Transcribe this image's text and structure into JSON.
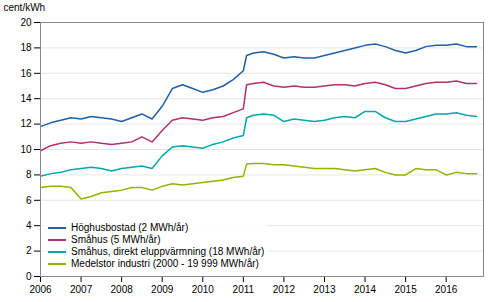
{
  "chart_data": {
    "type": "line",
    "y_label": "cent/kWh",
    "x": [
      2006.0,
      2006.25,
      2006.5,
      2006.75,
      2007.0,
      2007.25,
      2007.5,
      2007.75,
      2008.0,
      2008.25,
      2008.5,
      2008.75,
      2009.0,
      2009.25,
      2009.5,
      2009.75,
      2010.0,
      2010.25,
      2010.5,
      2010.75,
      2011.0,
      2011.08,
      2011.25,
      2011.5,
      2011.75,
      2012.0,
      2012.25,
      2012.5,
      2012.75,
      2013.0,
      2013.25,
      2013.5,
      2013.75,
      2014.0,
      2014.25,
      2014.5,
      2014.75,
      2015.0,
      2015.25,
      2015.5,
      2015.75,
      2016.0,
      2016.25,
      2016.5,
      2016.75
    ],
    "series": [
      {
        "name": "Höghusbostad (2 MWh/år)",
        "color": "#2060a8",
        "values": [
          11.8,
          12.1,
          12.3,
          12.5,
          12.4,
          12.6,
          12.5,
          12.4,
          12.2,
          12.5,
          12.8,
          12.4,
          13.4,
          14.8,
          15.1,
          14.8,
          14.5,
          14.7,
          15.0,
          15.5,
          16.2,
          17.4,
          17.6,
          17.7,
          17.5,
          17.2,
          17.3,
          17.2,
          17.2,
          17.4,
          17.6,
          17.8,
          18.0,
          18.2,
          18.3,
          18.1,
          17.8,
          17.6,
          17.8,
          18.1,
          18.2,
          18.2,
          18.3,
          18.1,
          18.1
        ]
      },
      {
        "name": "Småhus (5 MWh/år)",
        "color": "#b03070",
        "values": [
          9.9,
          10.3,
          10.5,
          10.6,
          10.5,
          10.6,
          10.5,
          10.4,
          10.5,
          10.6,
          11.0,
          10.6,
          11.5,
          12.3,
          12.5,
          12.4,
          12.3,
          12.5,
          12.6,
          12.9,
          13.2,
          15.1,
          15.2,
          15.3,
          15.0,
          14.9,
          15.0,
          14.9,
          14.9,
          15.0,
          15.1,
          15.1,
          15.0,
          15.2,
          15.3,
          15.1,
          14.8,
          14.8,
          15.0,
          15.2,
          15.3,
          15.3,
          15.4,
          15.2,
          15.2
        ]
      },
      {
        "name": "Småhus, direkt eluppvärmning (18 MWh/år)",
        "color": "#00a8a8",
        "values": [
          7.9,
          8.1,
          8.2,
          8.4,
          8.5,
          8.6,
          8.5,
          8.3,
          8.5,
          8.6,
          8.7,
          8.5,
          9.5,
          10.2,
          10.3,
          10.2,
          10.1,
          10.4,
          10.6,
          10.9,
          11.1,
          12.5,
          12.7,
          12.8,
          12.7,
          12.2,
          12.4,
          12.3,
          12.2,
          12.3,
          12.5,
          12.6,
          12.5,
          13.0,
          13.0,
          12.5,
          12.2,
          12.2,
          12.4,
          12.6,
          12.8,
          12.8,
          12.9,
          12.7,
          12.6
        ]
      },
      {
        "name": "Medelstor industri (2000 - 19 999 MWh/år)",
        "color": "#98b000",
        "values": [
          7.0,
          7.1,
          7.1,
          7.0,
          6.1,
          6.3,
          6.6,
          6.7,
          6.8,
          7.0,
          7.0,
          6.8,
          7.1,
          7.3,
          7.2,
          7.3,
          7.4,
          7.5,
          7.6,
          7.8,
          7.9,
          8.85,
          8.9,
          8.9,
          8.8,
          8.8,
          8.7,
          8.6,
          8.5,
          8.5,
          8.5,
          8.4,
          8.3,
          8.4,
          8.5,
          8.2,
          8.0,
          8.0,
          8.5,
          8.4,
          8.4,
          8.0,
          8.2,
          8.1,
          8.1
        ]
      }
    ],
    "xlim": [
      2006.0,
      2016.92
    ],
    "xticks": [
      2006,
      2007,
      2008,
      2009,
      2010,
      2011,
      2012,
      2013,
      2014,
      2015,
      2016
    ],
    "ylim": [
      0,
      20
    ],
    "yticks": [
      0,
      2,
      4,
      6,
      8,
      10,
      12,
      14,
      16,
      18,
      20
    ],
    "grid": true,
    "legend": "lower left"
  }
}
